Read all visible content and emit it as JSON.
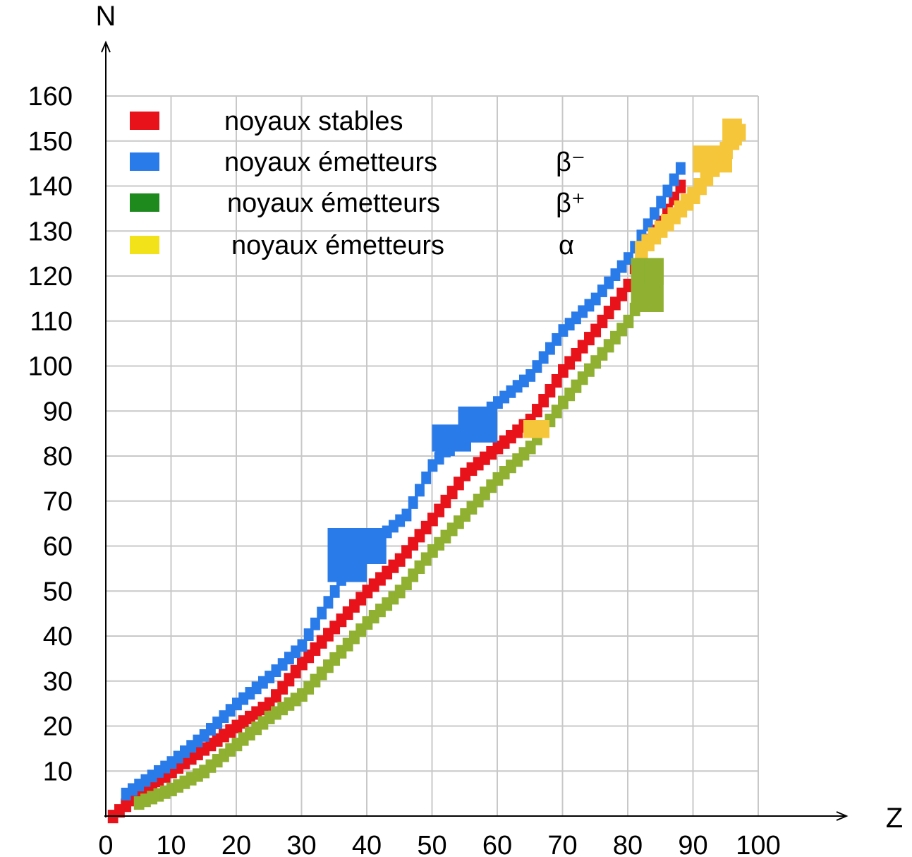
{
  "chart_data": {
    "type": "scatter",
    "title": "",
    "xlabel": "Z",
    "ylabel": "N",
    "xlim": [
      0,
      100
    ],
    "ylim": [
      0,
      160
    ],
    "grid": true,
    "legend_position": "top-left",
    "x_ticks": [
      "0",
      "10",
      "20",
      "30",
      "40",
      "50",
      "60",
      "70",
      "80",
      "90",
      "100"
    ],
    "y_ticks": [
      "10",
      "20",
      "30",
      "40",
      "50",
      "60",
      "70",
      "80",
      "90",
      "100",
      "110",
      "120",
      "130",
      "140",
      "150",
      "160"
    ],
    "legend": [
      {
        "key": "stable",
        "label": "noyaux stables",
        "symbol": "",
        "color": "#e8121b"
      },
      {
        "key": "beta_minus",
        "label": "noyaux émetteurs",
        "symbol": "β⁻",
        "color": "#2a7bea"
      },
      {
        "key": "beta_plus",
        "label": "noyaux émetteurs",
        "symbol": "β⁺",
        "color": "#1e8a1e"
      },
      {
        "key": "alpha",
        "label": "noyaux émetteurs",
        "symbol": "α",
        "color": "#f2e21a"
      }
    ],
    "series": [
      {
        "key": "stable",
        "color": "#e8121b",
        "band": [
          [
            1,
            0
          ],
          [
            5,
            5
          ],
          [
            10,
            10
          ],
          [
            15,
            15
          ],
          [
            20,
            20
          ],
          [
            25,
            25
          ],
          [
            30,
            34
          ],
          [
            35,
            42
          ],
          [
            40,
            50
          ],
          [
            45,
            57
          ],
          [
            50,
            66
          ],
          [
            55,
            76
          ],
          [
            60,
            82
          ],
          [
            65,
            88
          ],
          [
            70,
            99
          ],
          [
            75,
            108
          ],
          [
            80,
            118
          ],
          [
            82,
            126
          ],
          [
            85,
            132
          ],
          [
            88,
            140
          ]
        ],
        "halfWidth": 1.4,
        "offset": 0
      },
      {
        "key": "beta_minus",
        "color": "#2a7bea",
        "band": [
          [
            3,
            5
          ],
          [
            7,
            9
          ],
          [
            10,
            12
          ],
          [
            15,
            18
          ],
          [
            20,
            25
          ],
          [
            25,
            31
          ],
          [
            30,
            38
          ],
          [
            35,
            50
          ],
          [
            38,
            58
          ],
          [
            42,
            62
          ],
          [
            46,
            67
          ],
          [
            50,
            78
          ],
          [
            55,
            86
          ],
          [
            60,
            92
          ],
          [
            65,
            98
          ],
          [
            70,
            108
          ],
          [
            75,
            115
          ],
          [
            80,
            124
          ],
          [
            84,
            134
          ],
          [
            88,
            144
          ]
        ],
        "halfWidth": 1.3,
        "offset": 0,
        "blobs": [
          [
            37,
            58,
            3,
            6
          ],
          [
            41,
            60,
            2,
            4
          ],
          [
            53,
            84,
            3,
            3
          ],
          [
            57,
            87,
            3,
            4
          ],
          [
            52,
            82,
            1.5,
            2
          ]
        ]
      },
      {
        "key": "beta_plus",
        "color": "#8fb031",
        "band": [
          [
            5,
            3
          ],
          [
            10,
            6
          ],
          [
            15,
            10
          ],
          [
            20,
            16
          ],
          [
            25,
            22
          ],
          [
            30,
            27
          ],
          [
            35,
            35
          ],
          [
            40,
            43
          ],
          [
            45,
            50
          ],
          [
            50,
            59
          ],
          [
            55,
            67
          ],
          [
            60,
            75
          ],
          [
            65,
            82
          ],
          [
            70,
            92
          ],
          [
            75,
            101
          ],
          [
            80,
            110
          ],
          [
            83,
            118
          ]
        ],
        "halfWidth": 1.4,
        "offset": 0,
        "blobs": [
          [
            83,
            118,
            2.5,
            6
          ],
          [
            84,
            121,
            1.5,
            3
          ]
        ]
      },
      {
        "key": "alpha",
        "color": "#f6c63a",
        "band": [
          [
            82,
            126
          ],
          [
            86,
            132
          ],
          [
            90,
            138
          ],
          [
            94,
            146
          ],
          [
            97,
            152
          ]
        ],
        "halfWidth": 1.8,
        "offset": 0,
        "blobs": [
          [
            66,
            86,
            2,
            2
          ],
          [
            93,
            146,
            3,
            3
          ],
          [
            96,
            152,
            1.5,
            3
          ]
        ]
      }
    ]
  }
}
